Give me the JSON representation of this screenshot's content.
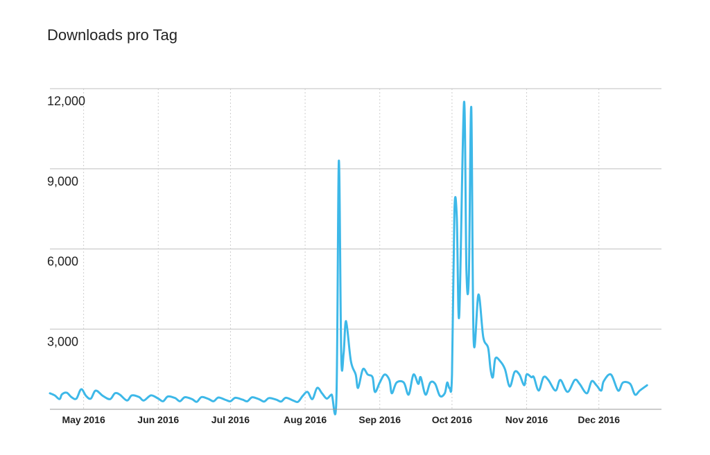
{
  "chart_data": {
    "type": "line",
    "title": "Downloads pro Tag",
    "xlabel": "",
    "ylabel": "",
    "x_range": [
      "2016-04-17",
      "2016-12-27"
    ],
    "ylim": [
      0,
      12000
    ],
    "y_ticks": [
      {
        "value": 3000,
        "label": "3,000"
      },
      {
        "value": 6000,
        "label": "6,000"
      },
      {
        "value": 9000,
        "label": "9,000"
      },
      {
        "value": 12000,
        "label": "12,000"
      }
    ],
    "x_ticks": [
      {
        "date": "2016-05-01",
        "label": "May 2016"
      },
      {
        "date": "2016-06-01",
        "label": "Jun 2016"
      },
      {
        "date": "2016-07-01",
        "label": "Jul 2016"
      },
      {
        "date": "2016-08-01",
        "label": "Aug 2016"
      },
      {
        "date": "2016-09-01",
        "label": "Sep 2016"
      },
      {
        "date": "2016-10-01",
        "label": "Oct 2016"
      },
      {
        "date": "2016-11-01",
        "label": "Nov 2016"
      },
      {
        "date": "2016-12-01",
        "label": "Dec 2016"
      }
    ],
    "grid": true,
    "line_color": "#3db8e8",
    "grid_color": "#cccccc",
    "series": [
      {
        "points": [
          [
            "2016-04-17",
            600
          ],
          [
            "2016-04-19",
            520
          ],
          [
            "2016-04-21",
            380
          ],
          [
            "2016-04-22",
            560
          ],
          [
            "2016-04-24",
            620
          ],
          [
            "2016-04-26",
            450
          ],
          [
            "2016-04-28",
            400
          ],
          [
            "2016-04-30",
            750
          ],
          [
            "2016-05-02",
            500
          ],
          [
            "2016-05-04",
            400
          ],
          [
            "2016-05-06",
            700
          ],
          [
            "2016-05-09",
            500
          ],
          [
            "2016-05-12",
            380
          ],
          [
            "2016-05-14",
            600
          ],
          [
            "2016-05-16",
            550
          ],
          [
            "2016-05-19",
            330
          ],
          [
            "2016-05-21",
            520
          ],
          [
            "2016-05-24",
            460
          ],
          [
            "2016-05-26",
            330
          ],
          [
            "2016-05-29",
            520
          ],
          [
            "2016-06-01",
            400
          ],
          [
            "2016-06-03",
            300
          ],
          [
            "2016-06-05",
            480
          ],
          [
            "2016-06-08",
            420
          ],
          [
            "2016-06-10",
            300
          ],
          [
            "2016-06-12",
            450
          ],
          [
            "2016-06-15",
            380
          ],
          [
            "2016-06-17",
            280
          ],
          [
            "2016-06-19",
            460
          ],
          [
            "2016-06-22",
            380
          ],
          [
            "2016-06-24",
            300
          ],
          [
            "2016-06-26",
            440
          ],
          [
            "2016-06-29",
            350
          ],
          [
            "2016-07-01",
            300
          ],
          [
            "2016-07-03",
            430
          ],
          [
            "2016-07-06",
            360
          ],
          [
            "2016-07-08",
            300
          ],
          [
            "2016-07-10",
            450
          ],
          [
            "2016-07-13",
            370
          ],
          [
            "2016-07-15",
            290
          ],
          [
            "2016-07-17",
            420
          ],
          [
            "2016-07-20",
            360
          ],
          [
            "2016-07-22",
            290
          ],
          [
            "2016-07-24",
            430
          ],
          [
            "2016-07-27",
            330
          ],
          [
            "2016-07-29",
            280
          ],
          [
            "2016-07-31",
            500
          ],
          [
            "2016-08-02",
            650
          ],
          [
            "2016-08-04",
            380
          ],
          [
            "2016-08-06",
            800
          ],
          [
            "2016-08-08",
            600
          ],
          [
            "2016-08-10",
            400
          ],
          [
            "2016-08-12",
            550
          ],
          [
            "2016-08-14",
            430
          ],
          [
            "2016-08-15",
            9300
          ],
          [
            "2016-08-16",
            2000
          ],
          [
            "2016-08-17",
            2100
          ],
          [
            "2016-08-18",
            3300
          ],
          [
            "2016-08-20",
            1800
          ],
          [
            "2016-08-22",
            1300
          ],
          [
            "2016-08-23",
            800
          ],
          [
            "2016-08-25",
            1500
          ],
          [
            "2016-08-27",
            1300
          ],
          [
            "2016-08-29",
            1200
          ],
          [
            "2016-08-30",
            650
          ],
          [
            "2016-09-01",
            1000
          ],
          [
            "2016-09-03",
            1300
          ],
          [
            "2016-09-05",
            1100
          ],
          [
            "2016-09-06",
            600
          ],
          [
            "2016-09-08",
            1000
          ],
          [
            "2016-09-11",
            1000
          ],
          [
            "2016-09-13",
            550
          ],
          [
            "2016-09-15",
            1300
          ],
          [
            "2016-09-17",
            950
          ],
          [
            "2016-09-18",
            1200
          ],
          [
            "2016-09-20",
            550
          ],
          [
            "2016-09-22",
            1000
          ],
          [
            "2016-09-24",
            950
          ],
          [
            "2016-09-26",
            500
          ],
          [
            "2016-09-28",
            600
          ],
          [
            "2016-09-29",
            1000
          ],
          [
            "2016-09-30",
            800
          ],
          [
            "2016-10-01",
            1300
          ],
          [
            "2016-10-02",
            7400
          ],
          [
            "2016-10-03",
            7200
          ],
          [
            "2016-10-04",
            3500
          ],
          [
            "2016-10-06",
            11500
          ],
          [
            "2016-10-07",
            5200
          ],
          [
            "2016-10-08",
            5000
          ],
          [
            "2016-10-09",
            11300
          ],
          [
            "2016-10-10",
            2600
          ],
          [
            "2016-10-12",
            4300
          ],
          [
            "2016-10-14",
            2700
          ],
          [
            "2016-10-16",
            2300
          ],
          [
            "2016-10-17",
            1500
          ],
          [
            "2016-10-18",
            1200
          ],
          [
            "2016-10-19",
            1900
          ],
          [
            "2016-10-21",
            1800
          ],
          [
            "2016-10-23",
            1500
          ],
          [
            "2016-10-25",
            850
          ],
          [
            "2016-10-27",
            1400
          ],
          [
            "2016-10-29",
            1300
          ],
          [
            "2016-10-31",
            900
          ],
          [
            "2016-11-01",
            1300
          ],
          [
            "2016-11-03",
            1200
          ],
          [
            "2016-11-04",
            1200
          ],
          [
            "2016-11-06",
            700
          ],
          [
            "2016-11-08",
            1200
          ],
          [
            "2016-11-10",
            1100
          ],
          [
            "2016-11-13",
            700
          ],
          [
            "2016-11-15",
            1100
          ],
          [
            "2016-11-18",
            650
          ],
          [
            "2016-11-21",
            1100
          ],
          [
            "2016-11-23",
            950
          ],
          [
            "2016-11-26",
            600
          ],
          [
            "2016-11-28",
            1050
          ],
          [
            "2016-11-30",
            900
          ],
          [
            "2016-12-02",
            700
          ],
          [
            "2016-12-03",
            1050
          ],
          [
            "2016-12-06",
            1300
          ],
          [
            "2016-12-09",
            700
          ],
          [
            "2016-12-11",
            1000
          ],
          [
            "2016-12-14",
            950
          ],
          [
            "2016-12-16",
            550
          ],
          [
            "2016-12-18",
            700
          ],
          [
            "2016-12-21",
            900
          ]
        ]
      }
    ]
  }
}
